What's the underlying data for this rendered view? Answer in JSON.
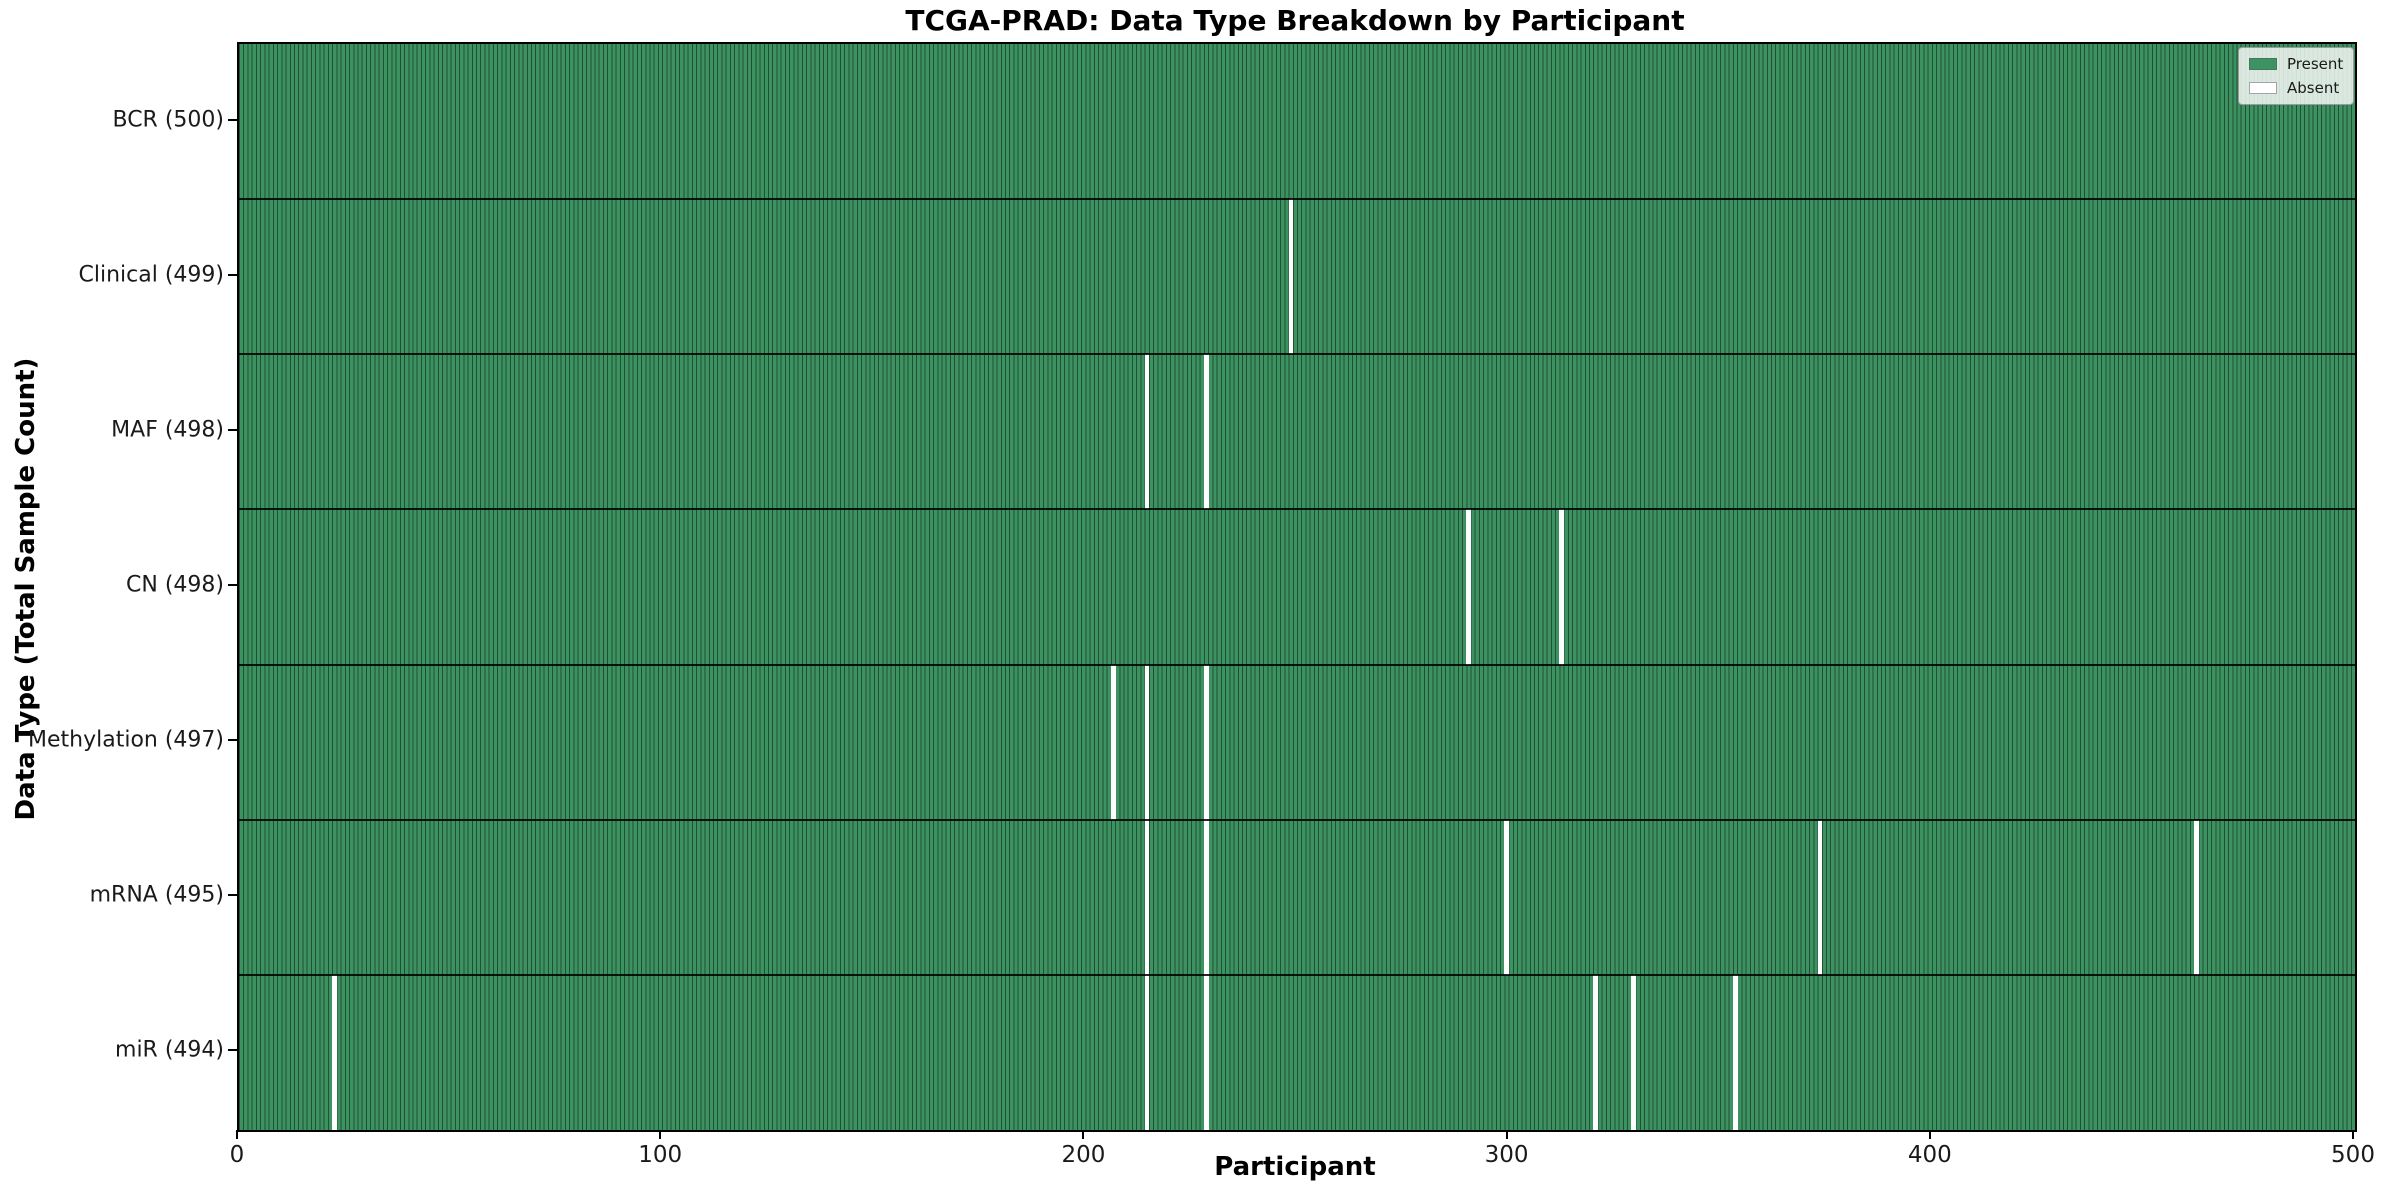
{
  "figure": {
    "title": "TCGA-PRAD: Data Type Breakdown by Participant"
  },
  "axes": {
    "xlabel": "Participant",
    "ylabel": "Data Type (Total Sample Count)"
  },
  "legend": {
    "items": [
      {
        "label": "Present",
        "color": "#3d9261"
      },
      {
        "label": "Absent",
        "color": "#ffffff"
      }
    ]
  },
  "chart_data": {
    "type": "heatmap",
    "title": "TCGA-PRAD: Data Type Breakdown by Participant",
    "xlabel": "Participant",
    "ylabel": "Data Type (Total Sample Count)",
    "xlim": [
      0,
      500
    ],
    "n_participants": 500,
    "x_ticks": [
      0,
      100,
      200,
      300,
      400,
      500
    ],
    "x_tick_labels": [
      "0",
      "100",
      "200",
      "300",
      "400",
      "500"
    ],
    "legend_position": "upper right",
    "grid": false,
    "present_color": "#3d9261",
    "cell_edge_color": "#205034",
    "absent_color": "#ffffff",
    "rows": [
      {
        "label": "BCR (500)",
        "data_type": "BCR",
        "total": 500,
        "absent_participants": []
      },
      {
        "label": "Clinical (499)",
        "data_type": "Clinical",
        "total": 499,
        "absent_participants": [
          248
        ]
      },
      {
        "label": "MAF (498)",
        "data_type": "MAF",
        "total": 498,
        "absent_participants": [
          214,
          228
        ]
      },
      {
        "label": "CN (498)",
        "data_type": "CN",
        "total": 498,
        "absent_participants": [
          290,
          312
        ]
      },
      {
        "label": "Methylation (497)",
        "data_type": "Methylation",
        "total": 497,
        "absent_participants": [
          206,
          214,
          228
        ]
      },
      {
        "label": "mRNA (495)",
        "data_type": "mRNA",
        "total": 495,
        "absent_participants": [
          214,
          228,
          299,
          373,
          462
        ]
      },
      {
        "label": "miR (494)",
        "data_type": "miR",
        "total": 494,
        "absent_participants": [
          22,
          214,
          228,
          320,
          329,
          353
        ]
      }
    ]
  }
}
